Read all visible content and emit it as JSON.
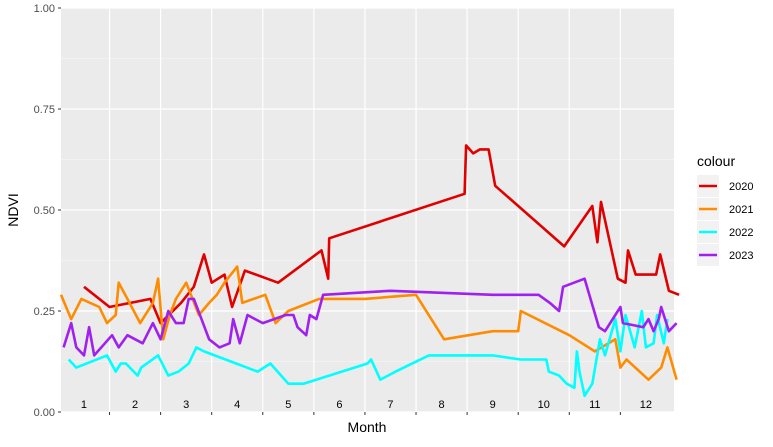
{
  "chart_data": {
    "type": "line",
    "xlabel": "Month",
    "ylabel": "NDVI",
    "ylim": [
      0,
      1
    ],
    "xlim": [
      0.55,
      12.55
    ],
    "y_ticks": [
      "0.00",
      "0.25",
      "0.50",
      "0.75",
      "1.00"
    ],
    "y_tick_values": [
      0,
      0.25,
      0.5,
      0.75,
      1.0
    ],
    "x_ticks": [
      "1",
      "2",
      "3",
      "4",
      "5",
      "6",
      "7",
      "8",
      "9",
      "10",
      "11",
      "12"
    ],
    "x_tick_values": [
      1,
      2,
      3,
      4,
      5,
      6,
      7,
      8,
      9,
      10,
      11,
      12
    ],
    "grid": true,
    "legend": {
      "title": "colour",
      "position": "right"
    },
    "series": [
      {
        "name": "2020",
        "color": "#E00000",
        "points": [
          [
            1.0,
            0.31
          ],
          [
            1.5,
            0.26
          ],
          [
            2.3,
            0.28
          ],
          [
            2.5,
            0.22
          ],
          [
            2.9,
            0.27
          ],
          [
            3.15,
            0.31
          ],
          [
            3.35,
            0.39
          ],
          [
            3.5,
            0.32
          ],
          [
            3.75,
            0.34
          ],
          [
            3.9,
            0.26
          ],
          [
            4.15,
            0.35
          ],
          [
            4.8,
            0.32
          ],
          [
            5.65,
            0.4
          ],
          [
            5.78,
            0.33
          ],
          [
            5.8,
            0.43
          ],
          [
            8.45,
            0.54
          ],
          [
            8.48,
            0.66
          ],
          [
            8.62,
            0.64
          ],
          [
            8.75,
            0.65
          ],
          [
            8.92,
            0.65
          ],
          [
            9.05,
            0.56
          ],
          [
            10.4,
            0.41
          ],
          [
            10.95,
            0.51
          ],
          [
            11.05,
            0.42
          ],
          [
            11.12,
            0.52
          ],
          [
            11.45,
            0.33
          ],
          [
            11.6,
            0.32
          ],
          [
            11.65,
            0.4
          ],
          [
            11.8,
            0.34
          ],
          [
            12.2,
            0.34
          ],
          [
            12.28,
            0.39
          ],
          [
            12.45,
            0.3
          ],
          [
            12.65,
            0.29
          ]
        ]
      },
      {
        "name": "2021",
        "color": "#FF8C00",
        "points": [
          [
            0.55,
            0.29
          ],
          [
            0.75,
            0.23
          ],
          [
            0.95,
            0.28
          ],
          [
            1.3,
            0.26
          ],
          [
            1.45,
            0.22
          ],
          [
            1.62,
            0.24
          ],
          [
            1.68,
            0.32
          ],
          [
            1.85,
            0.28
          ],
          [
            2.1,
            0.22
          ],
          [
            2.35,
            0.27
          ],
          [
            2.45,
            0.33
          ],
          [
            2.55,
            0.18
          ],
          [
            2.68,
            0.24
          ],
          [
            2.8,
            0.28
          ],
          [
            3.0,
            0.32
          ],
          [
            3.25,
            0.24
          ],
          [
            3.45,
            0.27
          ],
          [
            3.6,
            0.29
          ],
          [
            3.75,
            0.32
          ],
          [
            4.0,
            0.36
          ],
          [
            4.1,
            0.27
          ],
          [
            4.55,
            0.29
          ],
          [
            4.75,
            0.22
          ],
          [
            5.0,
            0.25
          ],
          [
            5.6,
            0.28
          ],
          [
            5.9,
            0.28
          ],
          [
            6.5,
            0.28
          ],
          [
            7.5,
            0.29
          ],
          [
            8.05,
            0.18
          ],
          [
            9.0,
            0.2
          ],
          [
            9.5,
            0.2
          ],
          [
            9.55,
            0.25
          ],
          [
            10.5,
            0.19
          ],
          [
            11.0,
            0.15
          ],
          [
            11.4,
            0.18
          ],
          [
            11.5,
            0.11
          ],
          [
            11.62,
            0.13
          ],
          [
            12.05,
            0.08
          ],
          [
            12.3,
            0.11
          ],
          [
            12.42,
            0.16
          ],
          [
            12.6,
            0.08
          ]
        ]
      },
      {
        "name": "2022",
        "color": "#00FFFF",
        "points": [
          [
            0.7,
            0.13
          ],
          [
            0.85,
            0.11
          ],
          [
            1.45,
            0.14
          ],
          [
            1.62,
            0.1
          ],
          [
            1.72,
            0.12
          ],
          [
            1.82,
            0.12
          ],
          [
            2.05,
            0.09
          ],
          [
            2.12,
            0.11
          ],
          [
            2.45,
            0.14
          ],
          [
            2.65,
            0.09
          ],
          [
            2.85,
            0.1
          ],
          [
            3.05,
            0.12
          ],
          [
            3.2,
            0.16
          ],
          [
            3.35,
            0.15
          ],
          [
            4.4,
            0.1
          ],
          [
            4.65,
            0.12
          ],
          [
            5.0,
            0.07
          ],
          [
            5.3,
            0.07
          ],
          [
            6.55,
            0.12
          ],
          [
            6.62,
            0.13
          ],
          [
            6.8,
            0.08
          ],
          [
            7.1,
            0.1
          ],
          [
            7.75,
            0.14
          ],
          [
            9.0,
            0.14
          ],
          [
            9.55,
            0.13
          ],
          [
            10.05,
            0.13
          ],
          [
            10.1,
            0.1
          ],
          [
            10.3,
            0.09
          ],
          [
            10.45,
            0.07
          ],
          [
            10.6,
            0.06
          ],
          [
            10.65,
            0.15
          ],
          [
            10.7,
            0.1
          ],
          [
            10.8,
            0.04
          ],
          [
            10.95,
            0.07
          ],
          [
            11.1,
            0.18
          ],
          [
            11.2,
            0.14
          ],
          [
            11.4,
            0.23
          ],
          [
            11.5,
            0.15
          ],
          [
            11.6,
            0.24
          ],
          [
            11.78,
            0.16
          ],
          [
            11.92,
            0.25
          ],
          [
            12.0,
            0.16
          ],
          [
            12.15,
            0.17
          ],
          [
            12.22,
            0.24
          ],
          [
            12.35,
            0.17
          ],
          [
            12.42,
            0.23
          ]
        ]
      },
      {
        "name": "2023",
        "color": "#A020F0",
        "points": [
          [
            0.6,
            0.16
          ],
          [
            0.75,
            0.22
          ],
          [
            0.85,
            0.16
          ],
          [
            1.0,
            0.14
          ],
          [
            1.1,
            0.21
          ],
          [
            1.2,
            0.14
          ],
          [
            1.55,
            0.19
          ],
          [
            1.68,
            0.16
          ],
          [
            1.85,
            0.19
          ],
          [
            2.15,
            0.17
          ],
          [
            2.35,
            0.22
          ],
          [
            2.5,
            0.18
          ],
          [
            2.65,
            0.25
          ],
          [
            2.8,
            0.22
          ],
          [
            2.95,
            0.22
          ],
          [
            3.05,
            0.28
          ],
          [
            3.15,
            0.28
          ],
          [
            3.3,
            0.23
          ],
          [
            3.45,
            0.18
          ],
          [
            3.65,
            0.16
          ],
          [
            3.85,
            0.17
          ],
          [
            3.92,
            0.23
          ],
          [
            4.05,
            0.17
          ],
          [
            4.2,
            0.24
          ],
          [
            4.35,
            0.23
          ],
          [
            4.5,
            0.22
          ],
          [
            4.95,
            0.24
          ],
          [
            5.1,
            0.24
          ],
          [
            5.18,
            0.21
          ],
          [
            5.35,
            0.19
          ],
          [
            5.42,
            0.24
          ],
          [
            5.55,
            0.23
          ],
          [
            5.68,
            0.29
          ],
          [
            7.0,
            0.3
          ],
          [
            9.0,
            0.29
          ],
          [
            9.9,
            0.29
          ],
          [
            10.12,
            0.27
          ],
          [
            10.3,
            0.25
          ],
          [
            10.38,
            0.31
          ],
          [
            10.8,
            0.33
          ],
          [
            11.08,
            0.21
          ],
          [
            11.2,
            0.2
          ],
          [
            11.5,
            0.26
          ],
          [
            11.55,
            0.22
          ],
          [
            11.95,
            0.21
          ],
          [
            12.05,
            0.23
          ],
          [
            12.15,
            0.2
          ],
          [
            12.25,
            0.23
          ],
          [
            12.3,
            0.26
          ],
          [
            12.45,
            0.2
          ],
          [
            12.6,
            0.22
          ]
        ]
      }
    ]
  }
}
